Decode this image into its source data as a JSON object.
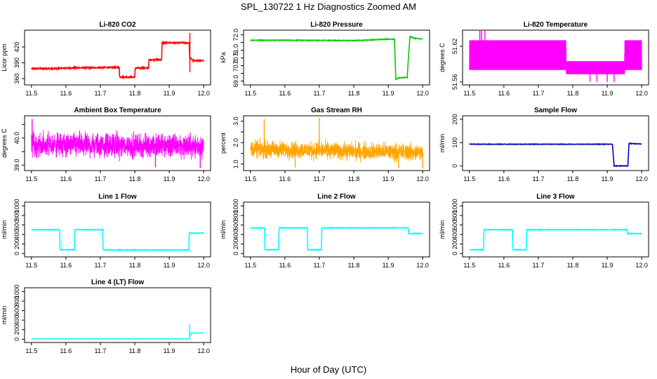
{
  "figure": {
    "title": "SPL_130722  1 Hz Diagnostics Zoomed AM",
    "xlabel": "Hour of Day (UTC)"
  },
  "chart_data": [
    {
      "type": "line",
      "title": "Li-820 CO2",
      "ylabel": "Licor ppm",
      "color": "#ff0000",
      "xlim": [
        11.48,
        12.02
      ],
      "ylim": [
        348,
        452
      ],
      "xticks": [
        11.5,
        11.6,
        11.7,
        11.8,
        11.9,
        12.0
      ],
      "xtick_labels": [
        "11.5",
        "11.6",
        "11.7",
        "11.8",
        "11.9",
        "12.0"
      ],
      "yticks": [
        360,
        390,
        420
      ],
      "ytick_labels": [
        "360",
        "390",
        "420"
      ],
      "noise": 1.2,
      "spikes": [
        [
          11.96,
          447
        ],
        [
          11.96,
          372
        ],
        [
          11.88,
          431
        ]
      ],
      "x": [
        11.5,
        11.56,
        11.6,
        11.7,
        11.755,
        11.756,
        11.8,
        11.801,
        11.84,
        11.841,
        11.878,
        11.879,
        11.958,
        11.959,
        11.97,
        12.0
      ],
      "y": [
        379,
        379,
        380,
        381,
        381,
        363,
        363,
        380,
        380,
        396,
        396,
        428,
        428,
        400,
        394,
        394
      ]
    },
    {
      "type": "line",
      "title": "Li-820 Pressure",
      "ylabel": "kPa",
      "color": "#00cc00",
      "xlim": [
        11.48,
        12.02
      ],
      "ylim": [
        68.75,
        72.3
      ],
      "xticks": [
        11.5,
        11.6,
        11.7,
        11.8,
        11.9,
        12.0
      ],
      "xtick_labels": [
        "11.5",
        "11.6",
        "11.7",
        "11.8",
        "11.9",
        "12.0"
      ],
      "yticks": [
        69.0,
        69.5,
        70.0,
        70.5,
        71.0,
        71.5,
        72.0
      ],
      "ytick_labels": [
        "69.0",
        "",
        "70.0",
        "70.5",
        "71.0",
        "",
        "72.0"
      ],
      "noise": 0.02,
      "spikes": [],
      "x": [
        11.5,
        11.6,
        11.7,
        11.8,
        11.84,
        11.9,
        11.918,
        11.922,
        11.93,
        11.955,
        11.958,
        11.963,
        11.975,
        12.0
      ],
      "y": [
        71.65,
        71.65,
        71.64,
        71.63,
        71.66,
        71.72,
        71.72,
        69.1,
        69.2,
        69.25,
        70.3,
        71.9,
        71.78,
        71.72
      ]
    },
    {
      "type": "band",
      "title": "Li-820 Temperature",
      "ylabel": "degrees C",
      "color": "#ff00ff",
      "xlim": [
        11.48,
        12.02
      ],
      "ylim": [
        51.555,
        51.647
      ],
      "xticks": [
        11.5,
        11.6,
        11.7,
        11.8,
        11.9,
        12.0
      ],
      "xtick_labels": [
        "11.5",
        "11.6",
        "11.7",
        "11.8",
        "11.9",
        "12.0"
      ],
      "yticks": [
        51.56,
        51.62
      ],
      "ytick_labels": [
        "51.56",
        "51.62"
      ],
      "x": [
        11.5,
        11.78,
        11.781,
        11.95,
        11.951,
        12.0
      ],
      "low": [
        51.58,
        51.58,
        51.573,
        51.573,
        51.58,
        51.58
      ],
      "high": [
        51.63,
        51.63,
        51.595,
        51.595,
        51.63,
        51.63
      ],
      "spikes": [
        [
          11.53,
          51.647
        ],
        [
          11.535,
          51.647
        ],
        [
          11.545,
          51.647
        ],
        [
          11.85,
          51.56
        ],
        [
          11.87,
          51.56
        ],
        [
          11.9,
          51.56
        ],
        [
          11.92,
          51.56
        ]
      ]
    },
    {
      "type": "noise",
      "title": "Ambient Box Temperature",
      "ylabel": "degrees C",
      "color": "#ff00ff",
      "xlim": [
        11.48,
        12.02
      ],
      "ylim": [
        38.8,
        40.82
      ],
      "xticks": [
        11.5,
        11.6,
        11.7,
        11.8,
        11.9,
        12.0
      ],
      "xtick_labels": [
        "11.5",
        "11.6",
        "11.7",
        "11.8",
        "11.9",
        "12.0"
      ],
      "yticks": [
        39.0,
        39.5,
        40.0,
        40.5
      ],
      "ytick_labels": [
        "39.0",
        "",
        "40.0",
        ""
      ],
      "x": [
        11.5,
        12.0
      ],
      "center": [
        39.75,
        39.7
      ],
      "amp": 0.5,
      "spikes": [
        [
          11.502,
          40.7
        ],
        [
          11.86,
          38.92
        ],
        [
          11.99,
          38.9
        ]
      ]
    },
    {
      "type": "noise",
      "title": "Gas Stream RH",
      "ylabel": "percent",
      "color": "#ffa500",
      "xlim": [
        11.48,
        12.02
      ],
      "ylim": [
        0.7,
        3.25
      ],
      "xticks": [
        11.5,
        11.6,
        11.7,
        11.8,
        11.9,
        12.0
      ],
      "xtick_labels": [
        "11.5",
        "11.6",
        "11.7",
        "11.8",
        "11.9",
        "12.0"
      ],
      "yticks": [
        1.0,
        1.5,
        2.0,
        2.5,
        3.0
      ],
      "ytick_labels": [
        "1.0",
        "",
        "2.0",
        "",
        "3.0"
      ],
      "x": [
        11.5,
        12.0
      ],
      "center": [
        1.7,
        1.55
      ],
      "amp": 0.45,
      "spikes": [
        [
          11.54,
          3.1
        ],
        [
          11.7,
          3.15
        ],
        [
          11.93,
          0.8
        ],
        [
          11.63,
          0.85
        ],
        [
          12.0,
          0.8
        ]
      ]
    },
    {
      "type": "line",
      "title": "Sample Flow",
      "ylabel": "ml/min",
      "color": "#0000cc",
      "xlim": [
        11.48,
        12.02
      ],
      "ylim": [
        -20,
        215
      ],
      "xticks": [
        11.5,
        11.6,
        11.7,
        11.8,
        11.9,
        12.0
      ],
      "xtick_labels": [
        "11.5",
        "11.6",
        "11.7",
        "11.8",
        "11.9",
        "12.0"
      ],
      "yticks": [
        0,
        100,
        200
      ],
      "ytick_labels": [
        "0",
        "100",
        "200"
      ],
      "noise": 1.0,
      "spikes": [],
      "x": [
        11.5,
        11.915,
        11.92,
        11.96,
        11.963,
        12.0
      ],
      "y": [
        93,
        93,
        0,
        0,
        96,
        94
      ]
    },
    {
      "type": "line",
      "title": "Line 1 Flow",
      "ylabel": "ml/min",
      "color": "#00ffff",
      "xlim": [
        11.48,
        12.02
      ],
      "ylim": [
        -70,
        1080
      ],
      "xticks": [
        11.5,
        11.6,
        11.7,
        11.8,
        11.9,
        12.0
      ],
      "xtick_labels": [
        "11.5",
        "11.6",
        "11.7",
        "11.8",
        "11.9",
        "12.0"
      ],
      "yticks": [
        0,
        200,
        400,
        600,
        800,
        1000
      ],
      "ytick_labels": [
        "0",
        "200",
        "400",
        "600",
        "800",
        "1000"
      ],
      "noise": 6,
      "spikes": [],
      "x": [
        11.5,
        11.582,
        11.583,
        11.625,
        11.626,
        11.707,
        11.708,
        11.957,
        11.958,
        12.0
      ],
      "y": [
        500,
        500,
        80,
        80,
        500,
        500,
        75,
        75,
        430,
        430
      ]
    },
    {
      "type": "line",
      "title": "Line 2 Flow",
      "ylabel": "ml/min",
      "color": "#00ffff",
      "xlim": [
        11.48,
        12.02
      ],
      "ylim": [
        -70,
        1080
      ],
      "xticks": [
        11.5,
        11.6,
        11.7,
        11.8,
        11.9,
        12.0
      ],
      "xtick_labels": [
        "11.5",
        "11.6",
        "11.7",
        "11.8",
        "11.9",
        "12.0"
      ],
      "yticks": [
        0,
        200,
        400,
        600,
        800,
        1000
      ],
      "ytick_labels": [
        "0",
        "200",
        "400",
        "600",
        "800",
        "1000"
      ],
      "noise": 6,
      "spikes": [],
      "x": [
        11.5,
        11.541,
        11.542,
        11.582,
        11.583,
        11.665,
        11.666,
        11.706,
        11.707,
        11.958,
        11.959,
        12.0
      ],
      "y": [
        540,
        540,
        80,
        80,
        540,
        540,
        80,
        80,
        540,
        540,
        420,
        420
      ]
    },
    {
      "type": "line",
      "title": "Line 3 Flow",
      "ylabel": "ml/min",
      "color": "#00ffff",
      "xlim": [
        11.48,
        12.02
      ],
      "ylim": [
        -70,
        1080
      ],
      "xticks": [
        11.5,
        11.6,
        11.7,
        11.8,
        11.9,
        12.0
      ],
      "xtick_labels": [
        "11.5",
        "11.6",
        "11.7",
        "11.8",
        "11.9",
        "12.0"
      ],
      "yticks": [
        0,
        200,
        400,
        600,
        800,
        1000
      ],
      "ytick_labels": [
        "0",
        "200",
        "400",
        "600",
        "800",
        "1000"
      ],
      "noise": 6,
      "spikes": [],
      "x": [
        11.5,
        11.541,
        11.542,
        11.625,
        11.626,
        11.665,
        11.666,
        11.958,
        11.959,
        12.0
      ],
      "y": [
        80,
        80,
        500,
        500,
        80,
        80,
        500,
        500,
        420,
        420
      ]
    },
    {
      "type": "line",
      "title": "Line 4 (LT) Flow",
      "ylabel": "ml/min",
      "color": "#00ffff",
      "xlim": [
        11.48,
        12.02
      ],
      "ylim": [
        -70,
        1080
      ],
      "xticks": [
        11.5,
        11.6,
        11.7,
        11.8,
        11.9,
        12.0
      ],
      "xtick_labels": [
        "11.5",
        "11.6",
        "11.7",
        "11.8",
        "11.9",
        "12.0"
      ],
      "yticks": [
        0,
        200,
        400,
        600,
        800,
        1000
      ],
      "ytick_labels": [
        "0",
        "200",
        "400",
        "600",
        "800",
        "1000"
      ],
      "noise": 1,
      "spikes": [
        [
          11.959,
          320
        ]
      ],
      "x": [
        11.5,
        11.957,
        11.958,
        11.962,
        12.0
      ],
      "y": [
        5,
        5,
        5,
        130,
        130
      ]
    }
  ]
}
